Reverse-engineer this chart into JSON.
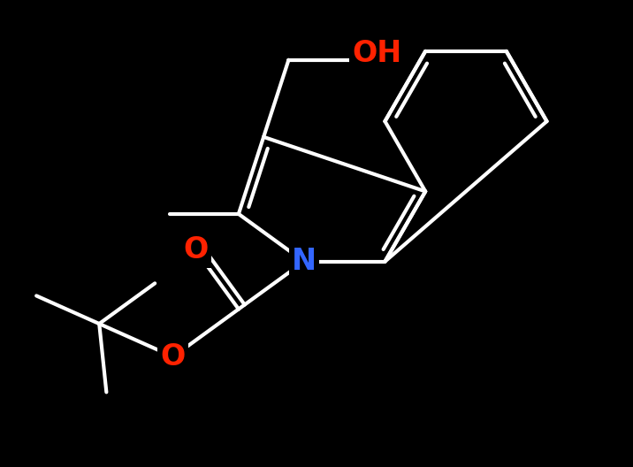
{
  "background_color": "#000000",
  "bond_color": "#ffffff",
  "N_color": "#3366ff",
  "O_color": "#ff2200",
  "bond_lw": 3.0,
  "fig_width": 7.16,
  "fig_height": 5.28,
  "dpi": 100,
  "xlim": [
    -1.0,
    9.0
  ],
  "ylim": [
    -0.5,
    7.0
  ]
}
